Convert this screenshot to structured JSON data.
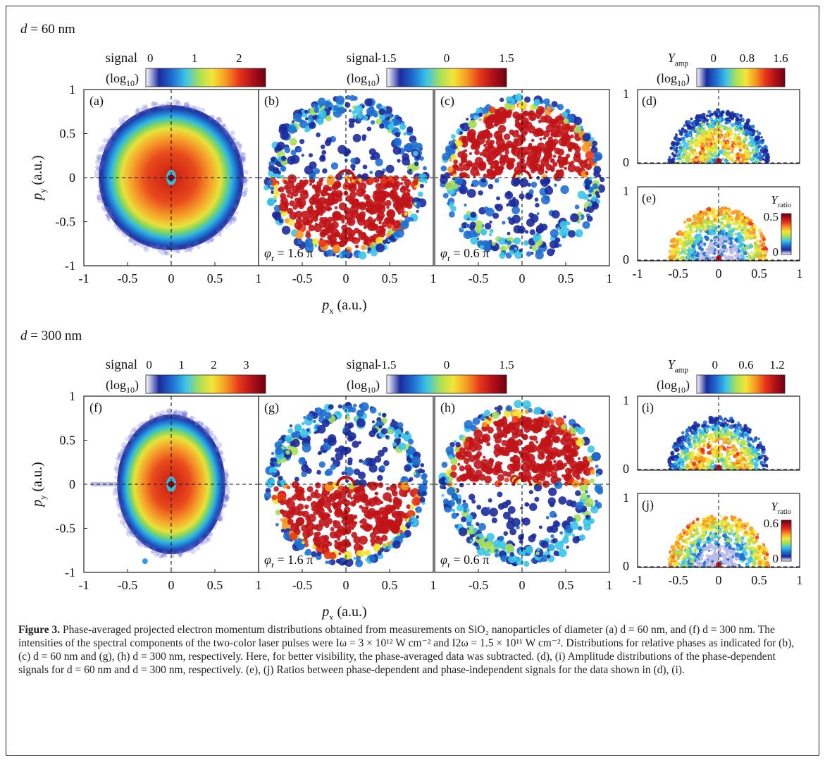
{
  "rows": [
    {
      "size_label": "d = 60 nm",
      "colorbars": [
        {
          "label": "signal",
          "sublabel": "(log",
          "sub": "10",
          "ticks": [
            "0",
            "1",
            "2"
          ],
          "tick_values": [
            0,
            1,
            2
          ],
          "range": [
            -0.1,
            2.6
          ],
          "cmap": "jet"
        },
        {
          "label": "signal",
          "sublabel": "(log",
          "sub": "10",
          "ticks": [
            "-1.5",
            "0",
            "1.5"
          ],
          "tick_values": [
            -1.5,
            0,
            1.5
          ],
          "range": [
            -1.5,
            1.5
          ],
          "cmap": "jet"
        },
        {
          "label": "Y",
          "label_sub": "amp",
          "sublabel": "(log",
          "sub": "10",
          "ticks": [
            "0",
            "0.8",
            "1.6"
          ],
          "tick_values": [
            0,
            0.8,
            1.6
          ],
          "range": [
            -0.4,
            1.7
          ],
          "cmap": "jet"
        }
      ],
      "panels": [
        {
          "id": "a",
          "label": "(a)",
          "kind": "avg",
          "phase": "",
          "ry": 0.83,
          "rx": 0.83
        },
        {
          "id": "b",
          "label": "(b)",
          "kind": "up",
          "phase": "φ = 1.6 π",
          "phase_sub": "r"
        },
        {
          "id": "c",
          "label": "(c)",
          "kind": "down",
          "phase": "φ = 0.6 π",
          "phase_sub": "r"
        }
      ],
      "small": [
        {
          "id": "d",
          "label": "(d)",
          "kind": "amp"
        },
        {
          "id": "e",
          "label": "(e)",
          "kind": "ratio",
          "cb_label": "Y",
          "cb_sub": "ratio",
          "cb_ticks": [
            "0.5",
            "0"
          ]
        }
      ]
    },
    {
      "size_label": "d = 300 nm",
      "colorbars": [
        {
          "label": "signal",
          "sublabel": "(log",
          "sub": "10",
          "ticks": [
            "0",
            "1",
            "2",
            "3"
          ],
          "tick_values": [
            0,
            1,
            2,
            3
          ],
          "range": [
            -0.1,
            3.6
          ],
          "cmap": "jet"
        },
        {
          "label": "signal",
          "sublabel": "(log",
          "sub": "10",
          "ticks": [
            "-1.5",
            "0",
            "1.5"
          ],
          "tick_values": [
            -1.5,
            0,
            1.5
          ],
          "range": [
            -1.5,
            1.5
          ],
          "cmap": "jet"
        },
        {
          "label": "Y",
          "label_sub": "amp",
          "sublabel": "(log",
          "sub": "10",
          "ticks": [
            "0",
            "0.6",
            "1.2"
          ],
          "tick_values": [
            0,
            0.6,
            1.2
          ],
          "range": [
            -0.35,
            1.35
          ],
          "cmap": "jet"
        }
      ],
      "panels": [
        {
          "id": "f",
          "label": "(f)",
          "kind": "avg-ellipse",
          "phase": "",
          "ry": 0.8,
          "rx": 0.62
        },
        {
          "id": "g",
          "label": "(g)",
          "kind": "up",
          "phase": "φ = 1.6 π",
          "phase_sub": "r"
        },
        {
          "id": "h",
          "label": "(h)",
          "kind": "down",
          "phase": "φ = 0.6 π",
          "phase_sub": "r"
        }
      ],
      "small": [
        {
          "id": "i",
          "label": "(i)",
          "kind": "amp"
        },
        {
          "id": "j",
          "label": "(j)",
          "kind": "ratio",
          "cb_label": "Y",
          "cb_sub": "ratio",
          "cb_ticks": [
            "0.6",
            "0"
          ]
        }
      ]
    }
  ],
  "axes": {
    "x_label": "p",
    "x_sub": "x",
    "x_unit": " (a.u.)",
    "y_label": "p",
    "y_sub": "y",
    "y_unit": " (a.u.)",
    "main_y_ticks": [
      "1",
      "0.5",
      "0",
      "-0.5",
      "-1"
    ],
    "main_y_values": [
      1,
      0.5,
      0,
      -0.5,
      -1
    ],
    "panel_x_ticks": [
      "-1",
      "-0.5",
      "0",
      "0.5",
      "1"
    ],
    "panel_x_ticks_inner": [
      "-0.5",
      "0",
      "0.5",
      "1"
    ],
    "panel_x_values": [
      -1,
      -0.5,
      0,
      0.5,
      1
    ],
    "small_y_ticks": [
      "1",
      "0"
    ],
    "small_x_ticks": [
      "-1",
      "-0.5",
      "0",
      "0.5",
      "1"
    ]
  },
  "caption": {
    "label": "Figure 3.",
    "text": "Phase-averaged projected electron momentum distributions obtained from measurements on SiO₂ nanoparticles of diameter (a) d = 60 nm, and (f) d = 300 nm. The intensities of the spectral components of the two-color laser pulses were Iω = 3 × 10¹² W cm⁻² and I2ω = 1.5 × 10¹¹ W cm⁻². Distributions for relative phases as indicated for (b), (c) d = 60 nm and (g), (h) d = 300 nm, respectively. Here, for better visibility, the phase-averaged data was subtracted. (d), (i) Amplitude distributions of the phase-dependent signals for d = 60 nm and d = 300 nm, respectively. (e), (j) Ratios between phase-dependent and phase-independent signals for the data shown in (d), (i)."
  },
  "colors": {
    "jet": [
      "#ffffff",
      "#1b2a9c",
      "#1f6fd1",
      "#3cc4e8",
      "#a8e05a",
      "#f4e535",
      "#f79a22",
      "#e8361a",
      "#b0101a",
      "#6e0010"
    ],
    "frame": "#222222"
  }
}
